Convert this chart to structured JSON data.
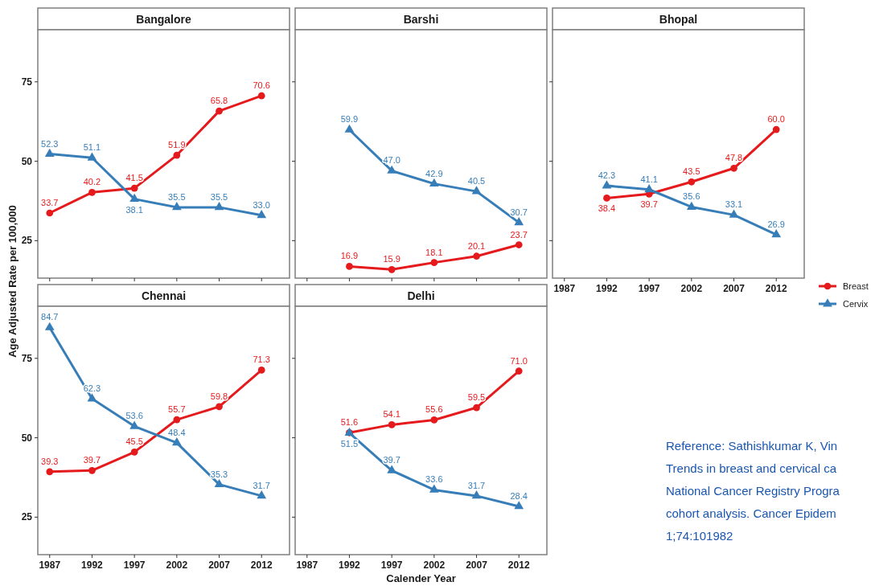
{
  "chart_data": [
    {
      "type": "line",
      "title": "Bangalore",
      "ylabel": "Age Adjusted Rate per 100,000",
      "xlim": [
        1985.6,
        2015.3
      ],
      "xticks": [
        1987,
        1992,
        1997,
        2002,
        2007,
        2012
      ],
      "ylim": [
        13.2,
        91.4
      ],
      "yticks": [
        25,
        50,
        75
      ],
      "tick_labels": "y",
      "grid": false,
      "line_style": "solid",
      "series": [
        {
          "color": "#e41a1c",
          "marker": "circle",
          "x": [
            1987,
            1992,
            1997,
            2002,
            2007,
            2012
          ],
          "values": [
            33.7,
            40.2,
            41.5,
            51.9,
            65.8,
            70.6
          ],
          "value_labels": [
            "33.7",
            "40.2",
            "41.5",
            "51.9",
            "65.8",
            "70.6"
          ]
        },
        {
          "color": "#377eb8",
          "marker": "triangle",
          "x": [
            1987,
            1992,
            1997,
            2002,
            2007,
            2012
          ],
          "values": [
            52.3,
            51.1,
            38.1,
            35.5,
            35.5,
            33.0
          ],
          "value_labels": [
            "52.3",
            "51.1",
            "38.1",
            "35.5",
            "35.5",
            "33.0"
          ]
        }
      ]
    },
    {
      "type": "line",
      "title": "Barshi",
      "xlim": [
        1985.6,
        2015.3
      ],
      "xticks": [
        1987,
        1992,
        1997,
        2002,
        2007,
        2012
      ],
      "ylim": [
        13.2,
        91.4
      ],
      "yticks": [
        25,
        50,
        75
      ],
      "tick_labels": false,
      "grid": false,
      "line_style": "solid",
      "series": [
        {
          "color": "#e41a1c",
          "marker": "circle",
          "x": [
            1992,
            1997,
            2002,
            2007,
            2012
          ],
          "values": [
            16.9,
            15.9,
            18.1,
            20.1,
            23.7
          ],
          "value_labels": [
            "16.9",
            "15.9",
            "18.1",
            "20.1",
            "23.7"
          ]
        },
        {
          "color": "#377eb8",
          "marker": "triangle",
          "x": [
            1992,
            1997,
            2002,
            2007,
            2012
          ],
          "values": [
            59.9,
            47.0,
            42.9,
            40.5,
            30.7
          ],
          "value_labels": [
            "59.9",
            "47.0",
            "42.9",
            "40.5",
            "30.7"
          ]
        }
      ]
    },
    {
      "type": "line",
      "title": "Bhopal",
      "xlim": [
        1985.6,
        2015.3
      ],
      "xticks": [
        1987,
        1992,
        1997,
        2002,
        2007,
        2012
      ],
      "ylim": [
        13.2,
        91.4
      ],
      "yticks": [
        25,
        50,
        75
      ],
      "tick_labels": "x",
      "grid": false,
      "legend": "right",
      "line_style": "solid",
      "series": [
        {
          "name": "Breast",
          "color": "#e41a1c",
          "marker": "circle",
          "x": [
            1992,
            1997,
            2002,
            2007,
            2012
          ],
          "values": [
            38.4,
            39.7,
            43.5,
            47.8,
            60.0
          ],
          "value_labels": [
            "38.4",
            "39.7",
            "43.5",
            "47.8",
            "60.0"
          ]
        },
        {
          "name": "Cervix",
          "color": "#377eb8",
          "marker": "triangle",
          "x": [
            1992,
            1997,
            2002,
            2007,
            2012
          ],
          "values": [
            42.3,
            41.1,
            35.6,
            33.1,
            26.9
          ],
          "value_labels": [
            "42.3",
            "41.1",
            "35.6",
            "33.1",
            "26.9"
          ]
        }
      ]
    },
    {
      "type": "line",
      "title": "Chennai",
      "xlim": [
        1985.6,
        2015.3
      ],
      "xticks": [
        1987,
        1992,
        1997,
        2002,
        2007,
        2012
      ],
      "ylim": [
        13.2,
        91.4
      ],
      "yticks": [
        25,
        50,
        75
      ],
      "grid": false,
      "line_style": "solid",
      "series": [
        {
          "color": "#e41a1c",
          "marker": "circle",
          "x": [
            1987,
            1992,
            1997,
            2002,
            2007,
            2012
          ],
          "values": [
            39.3,
            39.7,
            45.5,
            55.7,
            59.8,
            71.3
          ],
          "value_labels": [
            "39.3",
            "39.7",
            "45.5",
            "55.7",
            "59.8",
            "71.3"
          ]
        },
        {
          "color": "#377eb8",
          "marker": "triangle",
          "x": [
            1987,
            1992,
            1997,
            2002,
            2007,
            2012
          ],
          "values": [
            84.7,
            62.3,
            53.6,
            48.4,
            35.3,
            31.7
          ],
          "value_labels": [
            "84.7",
            "62.3",
            "53.6",
            "48.4",
            "35.3",
            "31.7"
          ]
        }
      ]
    },
    {
      "type": "line",
      "title": "Delhi",
      "xlabel": "Calender Year",
      "xlim": [
        1985.6,
        2015.3
      ],
      "xticks": [
        1987,
        1992,
        1997,
        2002,
        2007,
        2012
      ],
      "ylim": [
        13.2,
        91.4
      ],
      "yticks": [
        25,
        50,
        75
      ],
      "tick_labels": "x",
      "grid": false,
      "line_style": "solid",
      "annotations": [
        "Reference: Sathishkumar K, Vin",
        "Trends in breast and cervical ca",
        "National Cancer Registry Progra",
        "cohort analysis. Cancer Epidem",
        "1;74:101982"
      ],
      "series": [
        {
          "color": "#e41a1c",
          "marker": "circle",
          "x": [
            1992,
            1997,
            2002,
            2007,
            2012
          ],
          "values": [
            51.6,
            54.1,
            55.6,
            59.5,
            71.0
          ],
          "value_labels": [
            "51.6",
            "54.1",
            "55.6",
            "59.5",
            "71.0"
          ]
        },
        {
          "color": "#377eb8",
          "marker": "triangle",
          "x": [
            1992,
            1997,
            2002,
            2007,
            2012
          ],
          "values": [
            51.5,
            39.7,
            33.6,
            31.7,
            28.4
          ],
          "value_labels": [
            "51.5",
            "39.7",
            "33.6",
            "31.7",
            "28.4"
          ]
        }
      ]
    }
  ]
}
